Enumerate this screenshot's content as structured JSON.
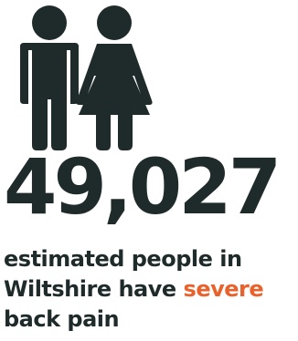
{
  "infographic": {
    "icons": [
      "male-person-icon",
      "female-person-icon"
    ],
    "statistic": "49,027",
    "caption_line1": "estimated people in",
    "caption_line2_before": "Wiltshire have ",
    "caption_highlight": "severe",
    "caption_line3": "back pain"
  },
  "colors": {
    "text": "#1f2b2a",
    "highlight": "#e9622b",
    "background": "#ffffff"
  }
}
